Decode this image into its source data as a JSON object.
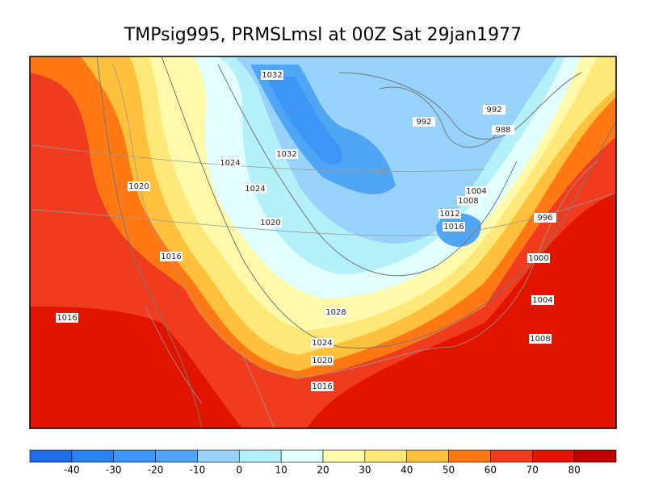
{
  "title": "TMPsig995, PRMSLmsl at 00Z Sat 29jan1977",
  "isobar_labels": [
    1032,
    1032,
    1024,
    1024,
    1020,
    1020,
    1016,
    1016,
    1028,
    1024,
    1020,
    1016,
    992,
    992,
    988,
    1004,
    1008,
    1012,
    1016,
    996,
    1000,
    1004,
    1008
  ],
  "colorbar": {
    "bounds": [
      -50,
      -40,
      -30,
      -20,
      -10,
      0,
      10,
      20,
      30,
      40,
      50,
      60,
      70,
      80,
      90
    ],
    "colors": [
      "#1e6eeb",
      "#2882f0",
      "#3c96f5",
      "#50a5f5",
      "#96d2fa",
      "#b4f0fa",
      "#e1ffff",
      "#fffaaa",
      "#ffe878",
      "#ffc03c",
      "#ff7814",
      "#f03c1e",
      "#e11400",
      "#c00000"
    ],
    "ticks": [
      -40,
      -30,
      -20,
      -10,
      0,
      10,
      20,
      30,
      40,
      50,
      60,
      70,
      80
    ]
  }
}
